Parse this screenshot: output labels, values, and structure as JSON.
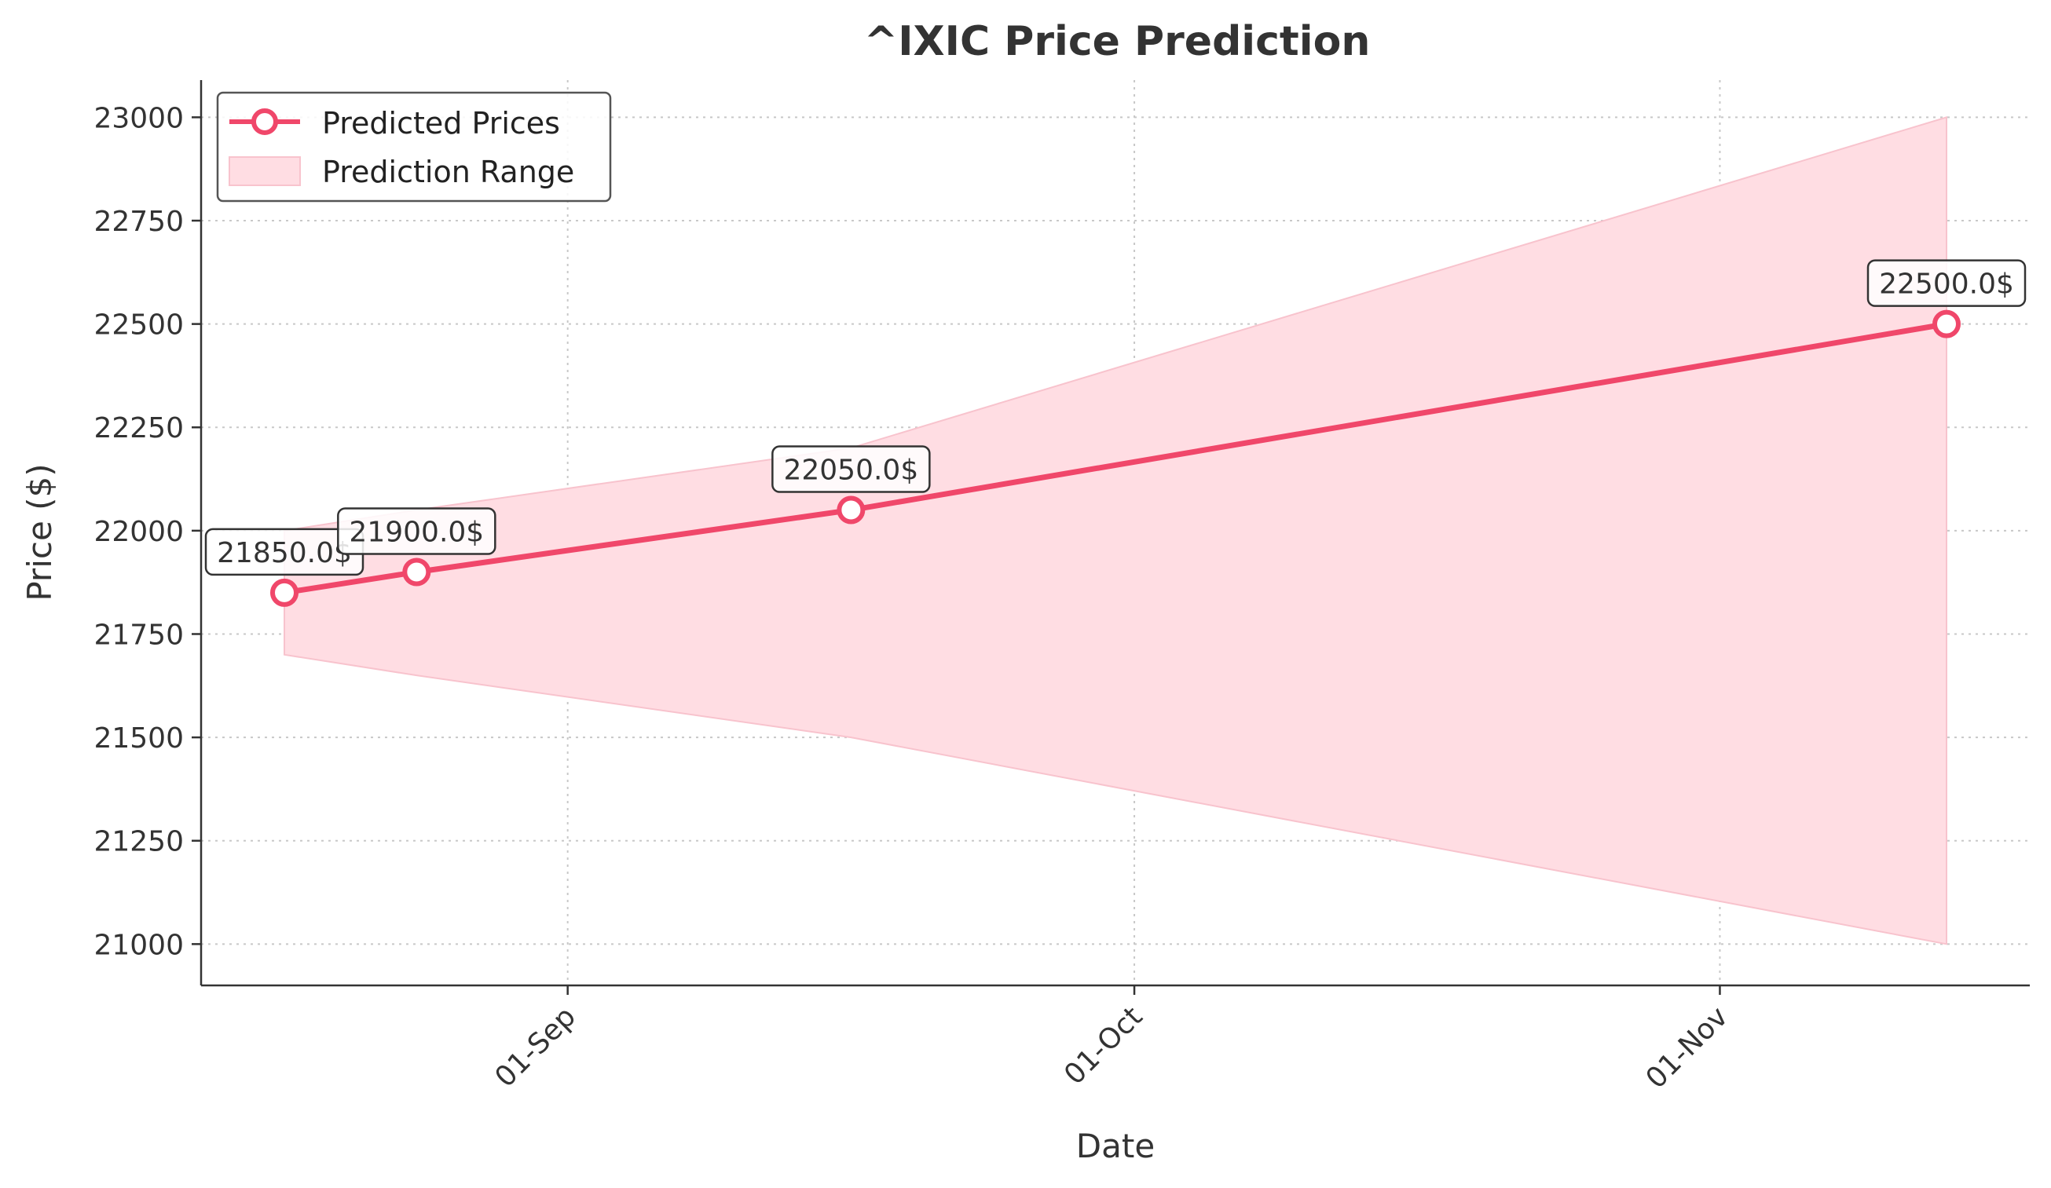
{
  "chart_data": {
    "type": "line",
    "title": "^IXIC Price Prediction",
    "xlabel": "Date",
    "ylabel": "Price ($)",
    "x_tick_labels": [
      "01-Sep",
      "01-Oct",
      "01-Nov"
    ],
    "y_tick_labels": [
      "21000",
      "21250",
      "21500",
      "21750",
      "22000",
      "22250",
      "22500",
      "22750",
      "23000"
    ],
    "ylim": [
      20900,
      23090
    ],
    "grid": true,
    "legend_position": "top-left",
    "series": [
      {
        "name": "Predicted Prices",
        "color": "#f0476a",
        "points": [
          {
            "x": "2025-08-17",
            "y": 21850
          },
          {
            "x": "2025-08-24",
            "y": 21900
          },
          {
            "x": "2025-09-16",
            "y": 22050
          },
          {
            "x": "2025-11-13",
            "y": 22500
          }
        ],
        "data_labels": [
          "21850.0$",
          "21900.0$",
          "22050.0$",
          "22500.0$"
        ]
      },
      {
        "name": "Prediction Range",
        "color": "#ffdde3",
        "type": "area",
        "points": [
          {
            "x": "2025-08-17",
            "low": 21700,
            "high": 22000
          },
          {
            "x": "2025-08-24",
            "low": 21650,
            "high": 22050
          },
          {
            "x": "2025-09-16",
            "low": 21500,
            "high": 22200
          },
          {
            "x": "2025-11-13",
            "low": 21000,
            "high": 23000
          }
        ]
      }
    ]
  }
}
